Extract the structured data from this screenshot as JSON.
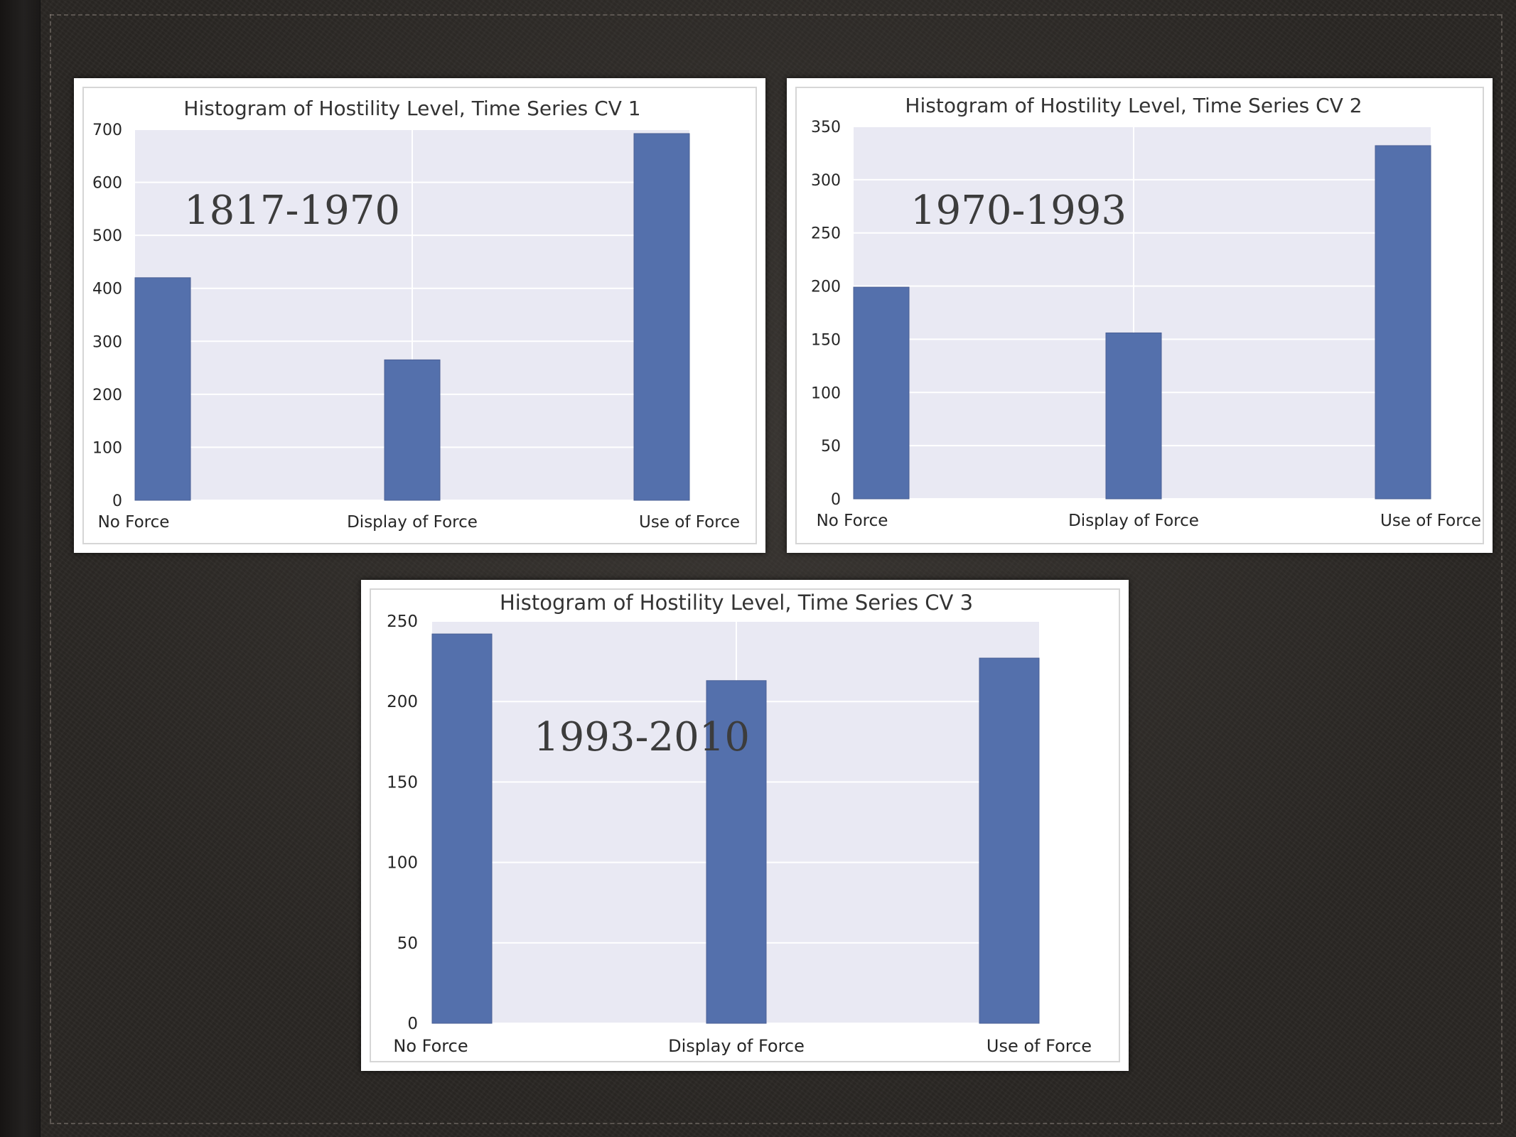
{
  "chart_data": [
    {
      "type": "bar",
      "title": "Histogram of Hostility Level, Time Series CV 1",
      "annotation": "1817-1970",
      "categories": [
        "No Force",
        "Display of Force",
        "Use of Force"
      ],
      "values": [
        420,
        265,
        692
      ],
      "ylim": [
        0,
        700
      ],
      "yticks": [
        0,
        100,
        200,
        300,
        400,
        500,
        600,
        700
      ],
      "xlabel": "",
      "ylabel": "",
      "grid": true,
      "bar_color": "#5470ac",
      "plot_bg": "#e9e9f3"
    },
    {
      "type": "bar",
      "title": "Histogram of Hostility Level, Time Series CV 2",
      "annotation": "1970-1993",
      "categories": [
        "No Force",
        "Display of Force",
        "Use of Force"
      ],
      "values": [
        199,
        156,
        332
      ],
      "ylim": [
        0,
        350
      ],
      "yticks": [
        0,
        50,
        100,
        150,
        200,
        250,
        300,
        350
      ],
      "xlabel": "",
      "ylabel": "",
      "grid": true,
      "bar_color": "#5470ac",
      "plot_bg": "#e9e9f3"
    },
    {
      "type": "bar",
      "title": "Histogram of Hostility Level, Time Series CV 3",
      "annotation": "1993-2010",
      "categories": [
        "No Force",
        "Display of Force",
        "Use of Force"
      ],
      "values": [
        242,
        213,
        227
      ],
      "ylim": [
        0,
        250
      ],
      "yticks": [
        0,
        50,
        100,
        150,
        200,
        250
      ],
      "xlabel": "",
      "ylabel": "",
      "grid": true,
      "bar_color": "#5470ac",
      "plot_bg": "#e9e9f3"
    }
  ]
}
